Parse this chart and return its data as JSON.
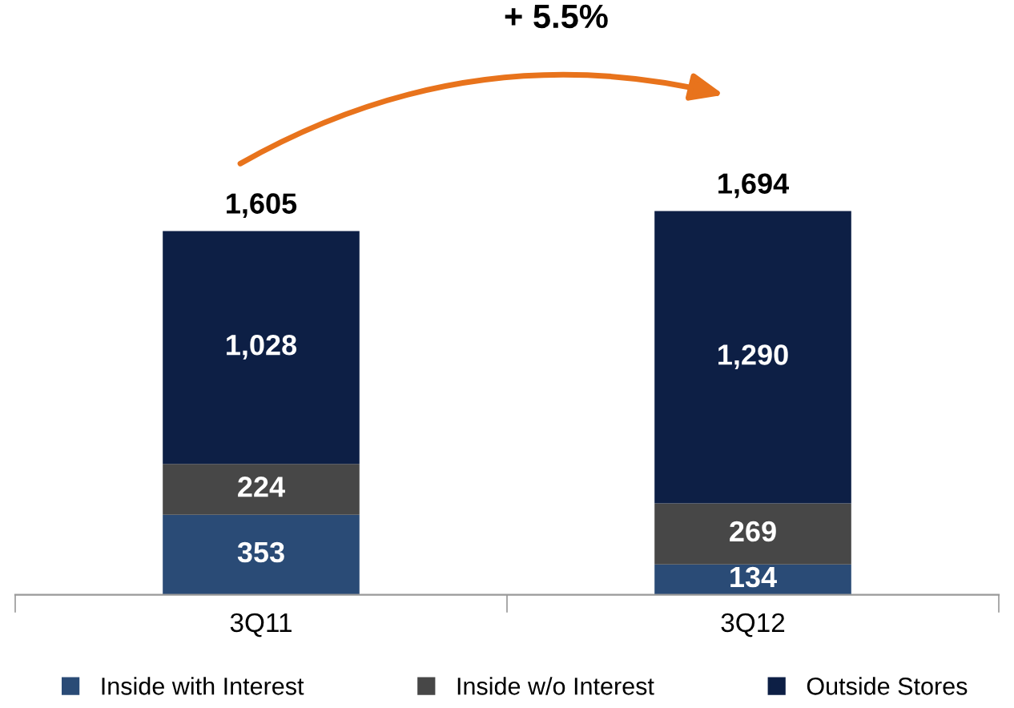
{
  "chart_data": {
    "type": "bar",
    "stacked": true,
    "categories": [
      "3Q11",
      "3Q12"
    ],
    "series": [
      {
        "name": "Inside with Interest",
        "color": "#2a4b76",
        "values": [
          353,
          134
        ],
        "value_labels": [
          "353",
          "134"
        ]
      },
      {
        "name": "Inside w/o Interest",
        "color": "#474747",
        "values": [
          224,
          269
        ],
        "value_labels": [
          "224",
          "269"
        ]
      },
      {
        "name": "Outside Stores",
        "color": "#0d1f45",
        "values": [
          1028,
          1290
        ],
        "value_labels": [
          "1,028",
          "1,290"
        ]
      }
    ],
    "totals": [
      "1,605",
      "1,694"
    ],
    "annotations": [
      "+ 5.5%"
    ],
    "legend": "bottom",
    "grid": false
  }
}
